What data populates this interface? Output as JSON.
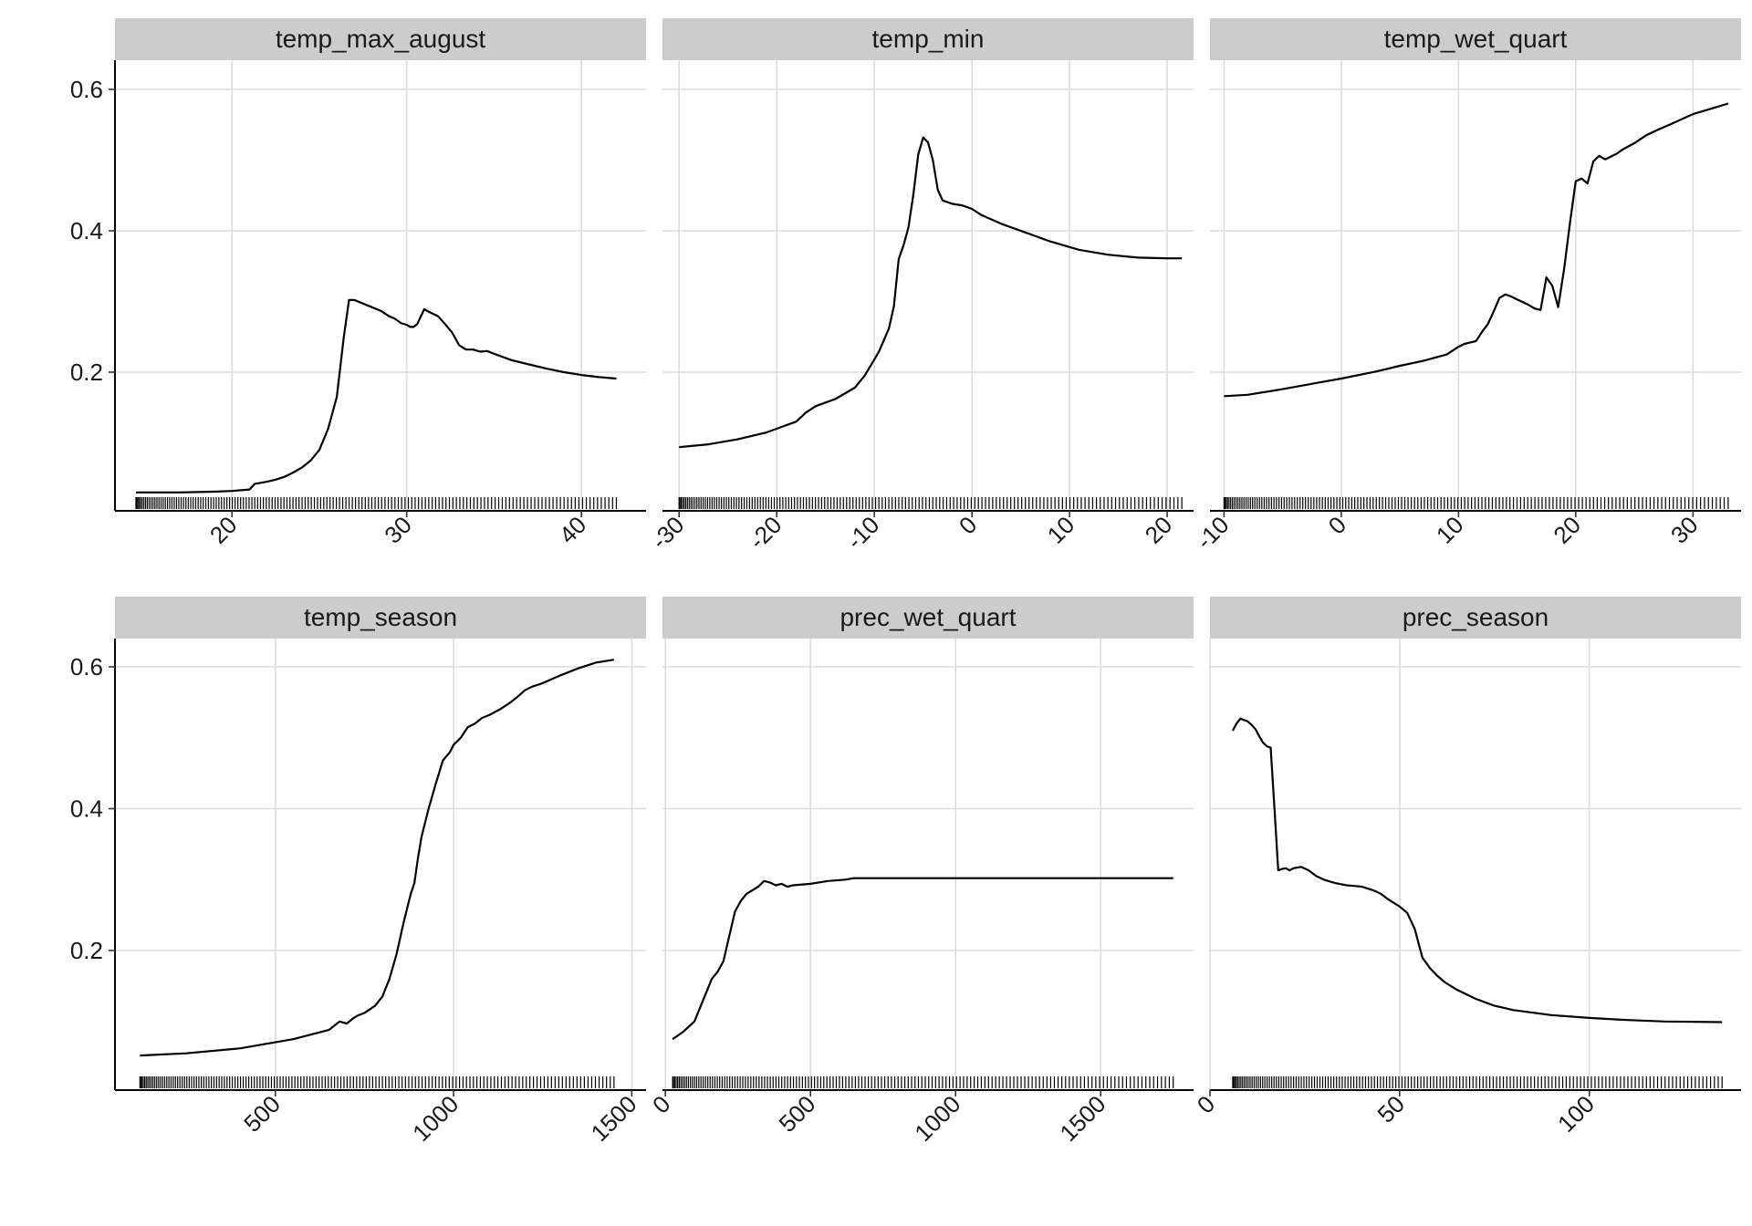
{
  "chart_data": {
    "type": "line",
    "layout": "facet-grid 2x3",
    "ylim": [
      0,
      0.64
    ],
    "y_ticks": [
      0.2,
      0.4,
      0.6
    ],
    "y_tick_labels": [
      "0.2",
      "0.4",
      "0.6"
    ],
    "rug": true,
    "grid": true,
    "x_tick_label_rotation": "45 degrees",
    "panels": [
      {
        "title": "temp_max_august",
        "xlim": [
          13.3,
          43.7
        ],
        "x_ticks": [
          20,
          30,
          40
        ],
        "x_tick_labels": [
          "20",
          "30",
          "40"
        ],
        "x": [
          14.5,
          17,
          19,
          20,
          21,
          21.3,
          22,
          22.5,
          23,
          23.5,
          24,
          24.5,
          25,
          25.5,
          26,
          26.4,
          26.7,
          27,
          27.5,
          28,
          28.5,
          29,
          29.3,
          29.7,
          30,
          30.2,
          30.4,
          30.6,
          31,
          31.3,
          31.8,
          32.2,
          32.6,
          33,
          33.4,
          33.8,
          34.2,
          34.6,
          35,
          36,
          37,
          38,
          39,
          40,
          41,
          42
        ],
        "y": [
          0.03,
          0.03,
          0.031,
          0.032,
          0.034,
          0.042,
          0.045,
          0.048,
          0.052,
          0.058,
          0.065,
          0.075,
          0.09,
          0.12,
          0.165,
          0.25,
          0.302,
          0.302,
          0.297,
          0.292,
          0.287,
          0.279,
          0.276,
          0.269,
          0.267,
          0.264,
          0.264,
          0.268,
          0.289,
          0.285,
          0.279,
          0.268,
          0.256,
          0.238,
          0.232,
          0.232,
          0.229,
          0.23,
          0.226,
          0.217,
          0.211,
          0.205,
          0.2,
          0.196,
          0.193,
          0.191
        ]
      },
      {
        "title": "temp_min",
        "xlim": [
          -31.7,
          22.7
        ],
        "x_ticks": [
          -30,
          -20,
          -10,
          0,
          10,
          20
        ],
        "x_tick_labels": [
          "-30",
          "-20",
          "-10",
          "0",
          "10",
          "20"
        ],
        "x": [
          -30,
          -27,
          -24,
          -21,
          -18,
          -17,
          -16,
          -14,
          -12,
          -11,
          -10,
          -9.5,
          -9,
          -8.5,
          -8,
          -7.5,
          -7,
          -6.5,
          -6,
          -5.5,
          -5,
          -4.5,
          -4,
          -3.5,
          -3,
          -2,
          -1,
          0,
          1,
          3,
          5,
          8,
          11,
          14,
          17,
          20,
          21.5
        ],
        "y": [
          0.094,
          0.098,
          0.105,
          0.115,
          0.13,
          0.143,
          0.152,
          0.162,
          0.178,
          0.195,
          0.218,
          0.23,
          0.246,
          0.262,
          0.293,
          0.36,
          0.38,
          0.405,
          0.452,
          0.508,
          0.532,
          0.525,
          0.5,
          0.458,
          0.443,
          0.438,
          0.436,
          0.431,
          0.422,
          0.41,
          0.4,
          0.385,
          0.373,
          0.366,
          0.362,
          0.361,
          0.361
        ]
      },
      {
        "title": "temp_wet_quart",
        "xlim": [
          -11.2,
          34.1
        ],
        "x_ticks": [
          -10,
          0,
          10,
          20,
          30
        ],
        "x_tick_labels": [
          "-10",
          "0",
          "10",
          "20",
          "30"
        ],
        "x": [
          -10,
          -8,
          -5,
          -2,
          0,
          3,
          5,
          7,
          9,
          10,
          10.5,
          11,
          11.5,
          12,
          12.5,
          13,
          13.5,
          14,
          14.5,
          15,
          16,
          16.5,
          17,
          17.5,
          18,
          18.5,
          19,
          19.5,
          20,
          20.5,
          21,
          21.5,
          22,
          22.5,
          23,
          23.5,
          24,
          25,
          26,
          27,
          28,
          30,
          32,
          33
        ],
        "y": [
          0.166,
          0.168,
          0.176,
          0.185,
          0.191,
          0.201,
          0.209,
          0.216,
          0.225,
          0.236,
          0.24,
          0.242,
          0.244,
          0.257,
          0.268,
          0.286,
          0.305,
          0.31,
          0.307,
          0.303,
          0.295,
          0.29,
          0.288,
          0.334,
          0.322,
          0.292,
          0.345,
          0.41,
          0.47,
          0.474,
          0.467,
          0.498,
          0.506,
          0.501,
          0.505,
          0.509,
          0.515,
          0.524,
          0.535,
          0.543,
          0.55,
          0.565,
          0.575,
          0.58
        ]
      },
      {
        "title": "temp_season",
        "xlim": [
          50,
          1540
        ],
        "x_ticks": [
          500,
          1000,
          1500
        ],
        "x_tick_labels": [
          "500",
          "1000",
          "1500"
        ],
        "x": [
          120,
          250,
          400,
          550,
          650,
          680,
          700,
          720,
          730,
          750,
          780,
          800,
          820,
          840,
          860,
          880,
          890,
          900,
          910,
          920,
          930,
          950,
          970,
          990,
          1000,
          1020,
          1040,
          1060,
          1080,
          1100,
          1130,
          1160,
          1180,
          1200,
          1220,
          1250,
          1300,
          1350,
          1400,
          1450
        ],
        "y": [
          0.052,
          0.055,
          0.062,
          0.075,
          0.088,
          0.1,
          0.097,
          0.105,
          0.108,
          0.112,
          0.122,
          0.135,
          0.16,
          0.195,
          0.24,
          0.28,
          0.295,
          0.33,
          0.36,
          0.38,
          0.4,
          0.435,
          0.468,
          0.48,
          0.49,
          0.5,
          0.515,
          0.52,
          0.528,
          0.532,
          0.54,
          0.55,
          0.558,
          0.567,
          0.572,
          0.577,
          0.588,
          0.598,
          0.606,
          0.61
        ]
      },
      {
        "title": "prec_wet_quart",
        "xlim": [
          -10,
          1820
        ],
        "x_ticks": [
          0,
          500,
          1000,
          1500
        ],
        "x_tick_labels": [
          "0",
          "500",
          "1000",
          "1500"
        ],
        "x": [
          25,
          60,
          100,
          130,
          160,
          180,
          200,
          220,
          240,
          260,
          280,
          300,
          320,
          340,
          360,
          380,
          400,
          420,
          440,
          500,
          560,
          620,
          650,
          700,
          800,
          1000,
          1200,
          1400,
          1600,
          1750
        ],
        "y": [
          0.075,
          0.085,
          0.1,
          0.13,
          0.16,
          0.17,
          0.185,
          0.22,
          0.255,
          0.27,
          0.28,
          0.285,
          0.29,
          0.298,
          0.296,
          0.292,
          0.294,
          0.29,
          0.292,
          0.294,
          0.298,
          0.3,
          0.302,
          0.302,
          0.302,
          0.302,
          0.302,
          0.302,
          0.302,
          0.302
        ]
      },
      {
        "title": "prec_season",
        "xlim": [
          0,
          140
        ],
        "x_ticks": [
          0,
          50,
          100
        ],
        "x_tick_labels": [
          "0",
          "50",
          "100"
        ],
        "x": [
          6,
          7,
          8,
          9,
          10,
          11,
          12,
          13,
          14,
          15,
          16,
          17,
          18,
          19,
          20,
          21,
          22,
          24,
          26,
          28,
          30,
          33,
          36,
          38,
          40,
          43,
          45,
          47,
          50,
          52,
          54,
          56,
          58,
          60,
          62,
          65,
          70,
          75,
          80,
          90,
          100,
          110,
          120,
          135
        ],
        "y": [
          0.51,
          0.52,
          0.527,
          0.525,
          0.523,
          0.518,
          0.512,
          0.502,
          0.493,
          0.488,
          0.486,
          0.4,
          0.313,
          0.315,
          0.316,
          0.313,
          0.316,
          0.318,
          0.313,
          0.305,
          0.3,
          0.295,
          0.292,
          0.291,
          0.29,
          0.285,
          0.28,
          0.272,
          0.262,
          0.253,
          0.23,
          0.19,
          0.175,
          0.164,
          0.155,
          0.145,
          0.132,
          0.122,
          0.116,
          0.109,
          0.105,
          0.102,
          0.1,
          0.099
        ]
      }
    ]
  }
}
